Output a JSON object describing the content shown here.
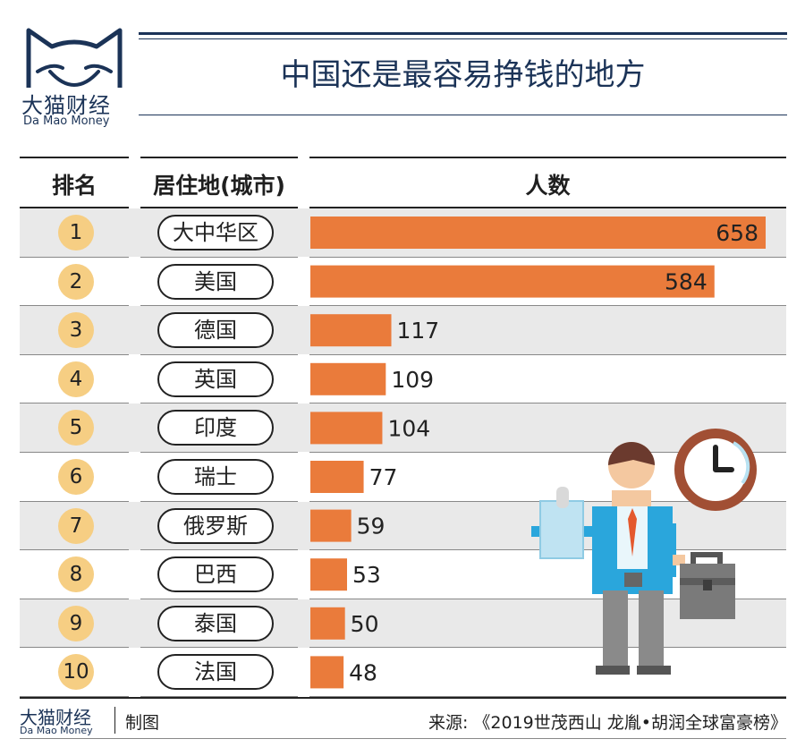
{
  "brand": {
    "name_cn": "大猫财经",
    "name_en": "Da Mao Money"
  },
  "title": "中国还是最容易挣钱的地方",
  "headers": {
    "rank": "排名",
    "city": "居住地(城市)",
    "count": "人数"
  },
  "colors": {
    "bar": "#ea7b3b",
    "rank_circle": "#f6ce83",
    "row_alt": "#e9e9e9",
    "brand": "#1b3357"
  },
  "chart_data": {
    "type": "bar",
    "orientation": "horizontal",
    "title": "中国还是最容易挣钱的地方",
    "categories": [
      "大中华区",
      "美国",
      "德国",
      "英国",
      "印度",
      "瑞士",
      "俄罗斯",
      "巴西",
      "泰国",
      "法国"
    ],
    "ranks": [
      "1",
      "2",
      "3",
      "4",
      "5",
      "6",
      "7",
      "8",
      "9",
      "10"
    ],
    "values": [
      658,
      584,
      117,
      109,
      104,
      77,
      59,
      53,
      50,
      48
    ],
    "xlim": [
      0,
      658
    ],
    "value_labels": true,
    "grid": false
  },
  "footer": {
    "made_by": "制图",
    "source": "来源: 《2019世茂西山 龙胤•胡润全球富豪榜》"
  }
}
